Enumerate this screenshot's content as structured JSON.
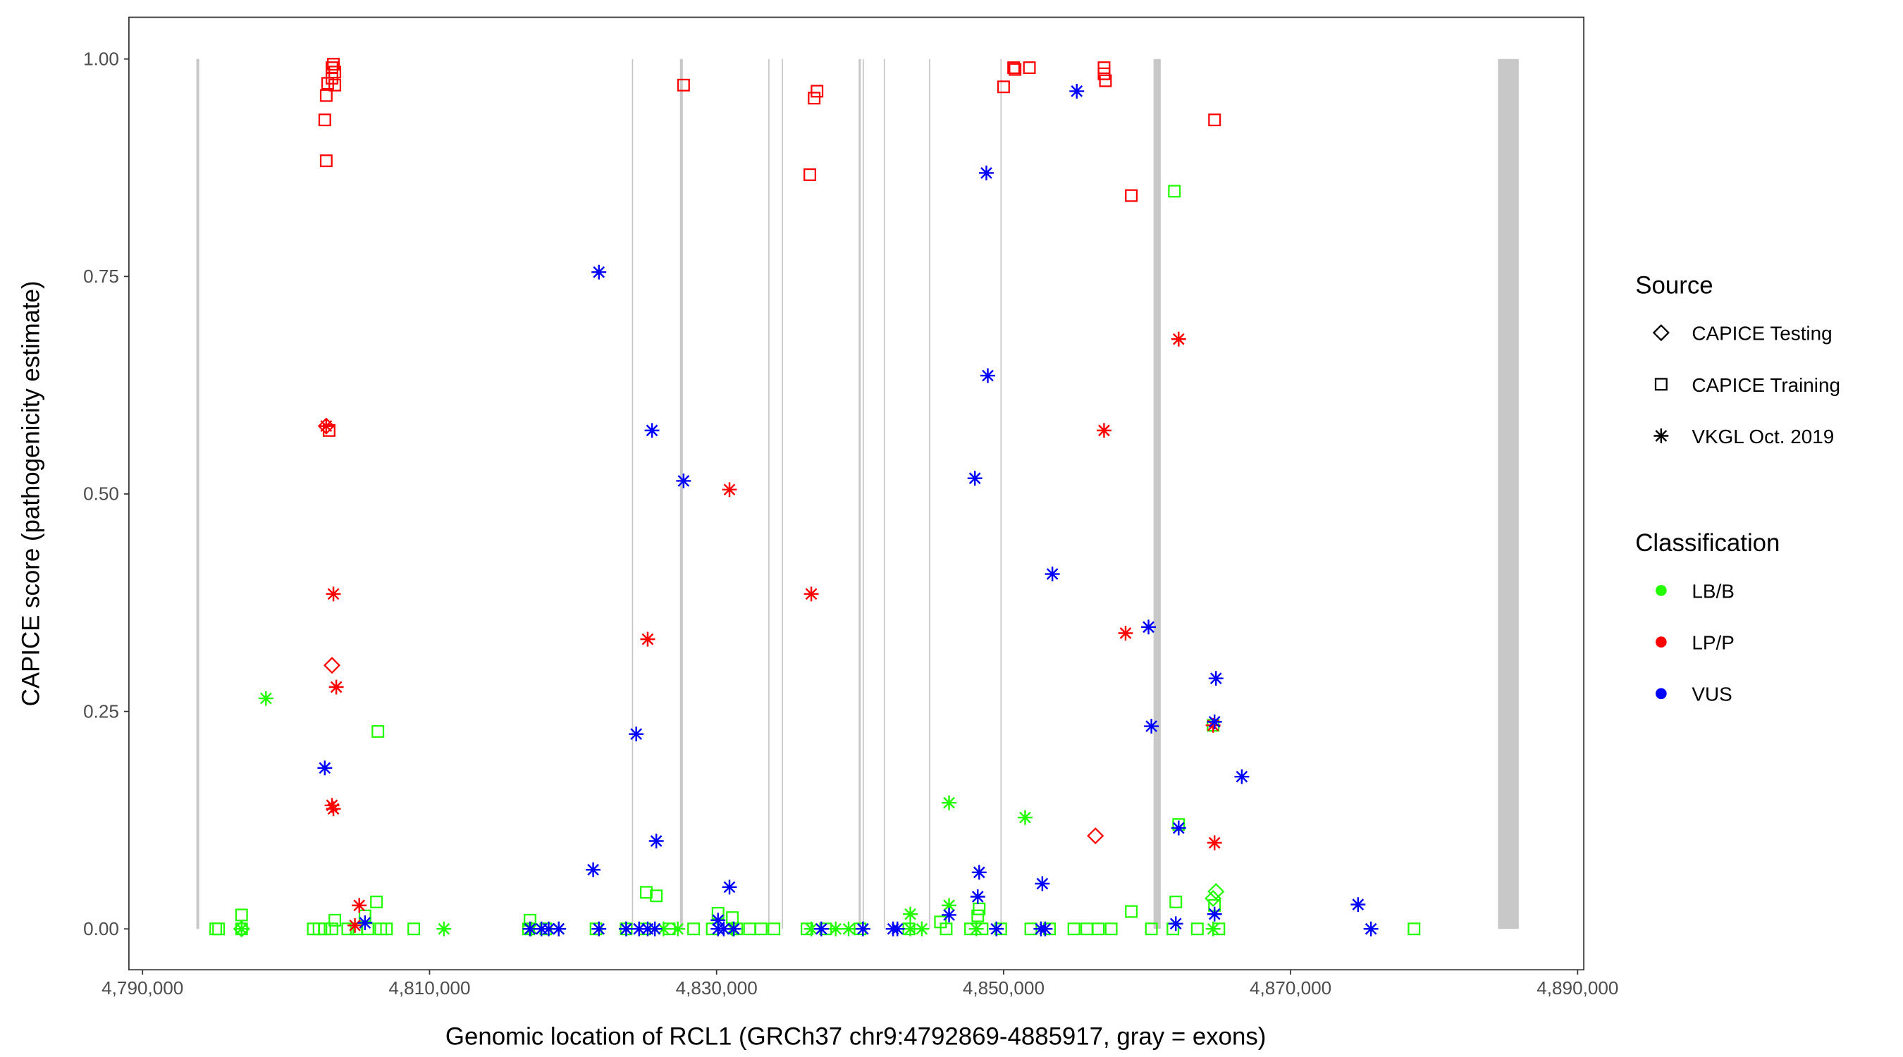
{
  "chart_data": {
    "type": "scatter",
    "xlabel": "Genomic location of RCL1 (GRCh37 chr9:4792869-4885917, gray = exons)",
    "ylabel": "CAPICE score (pathogenicity estimate)",
    "xlim": [
      4789050,
      4890430
    ],
    "ylim": [
      -0.047,
      1.048
    ],
    "x_ticks": [
      4790000,
      4810000,
      4830000,
      4850000,
      4870000,
      4890000
    ],
    "x_tick_labels": [
      "4,790,000",
      "4,810,000",
      "4,830,000",
      "4,850,000",
      "4,870,000",
      "4,890,000"
    ],
    "y_ticks": [
      0,
      0.25,
      0.5,
      0.75,
      1.0
    ],
    "y_tick_labels": [
      "0.00",
      "0.25",
      "0.50",
      "0.75",
      "1.00"
    ],
    "grid": false,
    "exon_color": "#c8c8c8",
    "exons": [
      [
        4793750,
        4793950
      ],
      [
        4824100,
        4824150
      ],
      [
        4827450,
        4827650
      ],
      [
        4833600,
        4833650
      ],
      [
        4834550,
        4834600
      ],
      [
        4839900,
        4840050
      ],
      [
        4840180,
        4840230
      ],
      [
        4841650,
        4841700
      ],
      [
        4844800,
        4844850
      ],
      [
        4849780,
        4849820
      ],
      [
        4860450,
        4860950
      ],
      [
        4884450,
        4885900
      ]
    ],
    "legend": {
      "placement": "right",
      "source_title": "Source",
      "source_items": [
        {
          "label": "CAPICE Testing",
          "shape": "diamond"
        },
        {
          "label": "CAPICE Training",
          "shape": "square"
        },
        {
          "label": "VKGL Oct. 2019",
          "shape": "asterisk"
        }
      ],
      "class_title": "Classification",
      "class_items": [
        {
          "label": "LB/B",
          "color": "#22ff00"
        },
        {
          "label": "LP/P",
          "color": "#ff0000"
        },
        {
          "label": "VUS",
          "color": "#0000ff"
        }
      ]
    },
    "series": [
      {
        "source": "CAPICE Training",
        "classification": "LB/B",
        "shape": "square",
        "color": "#22ff00",
        "points": [
          [
            4795100,
            0
          ],
          [
            4795300,
            0
          ],
          [
            4796900,
            0
          ],
          [
            4801900,
            0
          ],
          [
            4802300,
            0
          ],
          [
            4802700,
            0
          ],
          [
            4803200,
            0
          ],
          [
            4804300,
            0
          ],
          [
            4804900,
            0
          ],
          [
            4805700,
            0
          ],
          [
            4806600,
            0
          ],
          [
            4807000,
            0
          ],
          [
            4808900,
            0
          ],
          [
            4816900,
            0
          ],
          [
            4818100,
            0
          ],
          [
            4821600,
            0
          ],
          [
            4823700,
            0
          ],
          [
            4825000,
            0
          ],
          [
            4826700,
            0
          ],
          [
            4828400,
            0
          ],
          [
            4829700,
            0
          ],
          [
            4831400,
            0
          ],
          [
            4832300,
            0
          ],
          [
            4833100,
            0
          ],
          [
            4834000,
            0
          ],
          [
            4836300,
            0
          ],
          [
            4837600,
            0
          ],
          [
            4840000,
            0
          ],
          [
            4843400,
            0
          ],
          [
            4846000,
            0
          ],
          [
            4847700,
            0
          ],
          [
            4848500,
            0
          ],
          [
            4849800,
            0
          ],
          [
            4851900,
            0
          ],
          [
            4853200,
            0
          ],
          [
            4854900,
            0
          ],
          [
            4855800,
            0
          ],
          [
            4856600,
            0
          ],
          [
            4857500,
            0
          ],
          [
            4860300,
            0
          ],
          [
            4861800,
            0
          ],
          [
            4863500,
            0
          ],
          [
            4865000,
            0
          ],
          [
            4878600,
            0
          ],
          [
            4806400,
            0.227
          ],
          [
            4861900,
            0.848
          ],
          [
            4864600,
            0.234
          ],
          [
            4862200,
            0.12
          ],
          [
            4825100,
            0.042
          ],
          [
            4825800,
            0.038
          ],
          [
            4858900,
            0.02
          ],
          [
            4862000,
            0.031
          ],
          [
            4806300,
            0.031
          ],
          [
            4796900,
            0.016
          ],
          [
            4830100,
            0.018
          ],
          [
            4831100,
            0.013
          ],
          [
            4845600,
            0.008
          ],
          [
            4848300,
            0.023
          ],
          [
            4864700,
            0.027
          ],
          [
            4805500,
            0.015
          ],
          [
            4803400,
            0.01
          ],
          [
            4817000,
            0.01
          ],
          [
            4848200,
            0.015
          ]
        ]
      },
      {
        "source": "VKGL Oct. 2019",
        "classification": "LB/B",
        "shape": "asterisk",
        "color": "#22ff00",
        "points": [
          [
            4798600,
            0.265
          ],
          [
            4846200,
            0.145
          ],
          [
            4851500,
            0.128
          ],
          [
            4843500,
            0.017
          ],
          [
            4846200,
            0.027
          ],
          [
            4796900,
            0
          ],
          [
            4811000,
            0
          ],
          [
            4817100,
            0
          ],
          [
            4819000,
            0
          ],
          [
            4823700,
            0
          ],
          [
            4826300,
            0
          ],
          [
            4827300,
            0
          ],
          [
            4831100,
            0
          ],
          [
            4838300,
            0
          ],
          [
            4839200,
            0
          ],
          [
            4843500,
            0
          ],
          [
            4844300,
            0
          ],
          [
            4848100,
            0
          ],
          [
            4864600,
            0
          ],
          [
            4836600,
            0
          ]
        ]
      },
      {
        "source": "CAPICE Testing",
        "classification": "LB/B",
        "shape": "diamond",
        "color": "#22ff00",
        "points": [
          [
            4864800,
            0.043
          ],
          [
            4864600,
            0.035
          ],
          [
            4796900,
            0
          ]
        ]
      },
      {
        "source": "CAPICE Training",
        "classification": "LP/P",
        "shape": "square",
        "color": "#ff0000",
        "points": [
          [
            4802700,
            0.93
          ],
          [
            4802800,
            0.958
          ],
          [
            4802900,
            0.972
          ],
          [
            4803200,
            0.99
          ],
          [
            4803300,
            0.994
          ],
          [
            4803400,
            0.985
          ],
          [
            4803400,
            0.97
          ],
          [
            4803200,
            0.978
          ],
          [
            4802800,
            0.883
          ],
          [
            4803000,
            0.573
          ],
          [
            4827700,
            0.97
          ],
          [
            4837000,
            0.963
          ],
          [
            4836800,
            0.955
          ],
          [
            4836500,
            0.867
          ],
          [
            4850000,
            0.968
          ],
          [
            4850700,
            0.99
          ],
          [
            4850800,
            0.988
          ],
          [
            4851800,
            0.99
          ],
          [
            4857000,
            0.99
          ],
          [
            4857000,
            0.983
          ],
          [
            4857100,
            0.975
          ],
          [
            4858900,
            0.843
          ],
          [
            4864700,
            0.93
          ]
        ]
      },
      {
        "source": "CAPICE Testing",
        "classification": "LP/P",
        "shape": "diamond",
        "color": "#ff0000",
        "points": [
          [
            4802800,
            0.578
          ],
          [
            4803200,
            0.303
          ],
          [
            4856400,
            0.107
          ]
        ]
      },
      {
        "source": "VKGL Oct. 2019",
        "classification": "LP/P",
        "shape": "asterisk",
        "color": "#ff0000",
        "points": [
          [
            4802800,
            0.578
          ],
          [
            4803300,
            0.385
          ],
          [
            4803500,
            0.278
          ],
          [
            4803200,
            0.142
          ],
          [
            4803300,
            0.138
          ],
          [
            4805100,
            0.027
          ],
          [
            4804800,
            0.004
          ],
          [
            4825200,
            0.333
          ],
          [
            4830900,
            0.505
          ],
          [
            4836600,
            0.385
          ],
          [
            4857000,
            0.573
          ],
          [
            4862200,
            0.678
          ],
          [
            4858500,
            0.34
          ],
          [
            4864600,
            0.234
          ],
          [
            4864700,
            0.099
          ]
        ]
      },
      {
        "source": "VKGL Oct. 2019",
        "classification": "VUS",
        "shape": "asterisk",
        "color": "#0000ff",
        "points": [
          [
            4802700,
            0.185
          ],
          [
            4805500,
            0.007
          ],
          [
            4821800,
            0.755
          ],
          [
            4824400,
            0.224
          ],
          [
            4825500,
            0.573
          ],
          [
            4827700,
            0.515
          ],
          [
            4825800,
            0.101
          ],
          [
            4821400,
            0.068
          ],
          [
            4830900,
            0.048
          ],
          [
            4848800,
            0.869
          ],
          [
            4848900,
            0.636
          ],
          [
            4848000,
            0.518
          ],
          [
            4853400,
            0.408
          ],
          [
            4855100,
            0.963
          ],
          [
            4860100,
            0.347
          ],
          [
            4860300,
            0.233
          ],
          [
            4864800,
            0.288
          ],
          [
            4864700,
            0.238
          ],
          [
            4866600,
            0.175
          ],
          [
            4862200,
            0.116
          ],
          [
            4852700,
            0.052
          ],
          [
            4848300,
            0.065
          ],
          [
            4848200,
            0.037
          ],
          [
            4846200,
            0.016
          ],
          [
            4874700,
            0.028
          ],
          [
            4875600,
            0
          ],
          [
            4864700,
            0.017
          ],
          [
            4862000,
            0.006
          ],
          [
            4830100,
            0.01
          ],
          [
            4817000,
            0
          ],
          [
            4817800,
            0
          ],
          [
            4818300,
            0
          ],
          [
            4819000,
            0
          ],
          [
            4821800,
            0
          ],
          [
            4823700,
            0
          ],
          [
            4824600,
            0
          ],
          [
            4825200,
            0
          ],
          [
            4825700,
            0
          ],
          [
            4830100,
            0
          ],
          [
            4830500,
            0
          ],
          [
            4831200,
            0
          ],
          [
            4837300,
            0
          ],
          [
            4840200,
            0
          ],
          [
            4842300,
            0
          ],
          [
            4842600,
            0
          ],
          [
            4849500,
            0
          ],
          [
            4852600,
            0
          ],
          [
            4852900,
            0
          ]
        ]
      }
    ]
  }
}
